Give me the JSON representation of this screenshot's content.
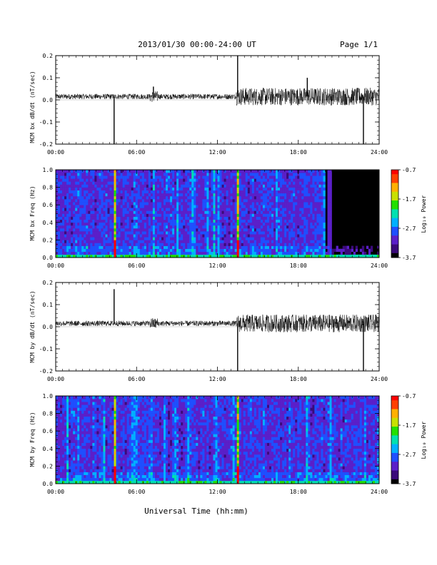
{
  "header": {
    "title": "2013/01/30  00:00-24:00 UT",
    "page": "Page 1/1"
  },
  "footer": {
    "xlabel": "Universal Time (hh:mm)"
  },
  "colorbar": {
    "ticks": [
      "-0.7",
      "-1.7",
      "-2.7",
      "-3.7"
    ],
    "label": "Log₁₀ Power",
    "colors": [
      "#000000",
      "#3b0a7a",
      "#5b1fc9",
      "#1f4fff",
      "#00b0ff",
      "#00e0b0",
      "#22e000",
      "#c8e000",
      "#ffb000",
      "#ff4000",
      "#ff0000"
    ]
  },
  "chart_data": [
    {
      "type": "line",
      "ylabel": "MCM bx dB/dt (nT/sec)",
      "ylim": [
        -0.2,
        0.2
      ],
      "yticks": [
        "0.2",
        "0.1",
        "0.0",
        "-0.1",
        "-0.2"
      ],
      "xlim": [
        "00:00",
        "24:00"
      ],
      "xticks": [
        "00:00",
        "06:00",
        "12:00",
        "18:00",
        "24:00"
      ],
      "series": [
        {
          "x": [
            "00:00",
            "02:00",
            "03:00",
            "04:00",
            "04:20",
            "05:00",
            "06:00",
            "07:00",
            "07:15",
            "08:00",
            "09:00",
            "10:00",
            "11:00",
            "12:00",
            "13:00",
            "13:30",
            "14:00",
            "15:00",
            "16:00",
            "17:00",
            "18:00",
            "18:40",
            "19:00",
            "20:00",
            "21:00",
            "22:00",
            "22:50",
            "23:30",
            "24:00"
          ],
          "y": [
            0.01,
            0.01,
            0.02,
            0.02,
            -0.2,
            0.02,
            0.02,
            0.03,
            0.06,
            0.02,
            0.02,
            0.02,
            0.02,
            0.02,
            0.02,
            0.2,
            0.02,
            0.03,
            0.03,
            0.02,
            0.02,
            0.1,
            0.03,
            0.03,
            0.03,
            0.03,
            -0.2,
            0.03,
            0.02
          ]
        }
      ]
    },
    {
      "type": "heatmap",
      "ylabel": "MCM bx Freq (Hz)",
      "ylim": [
        0.0,
        1.0
      ],
      "yticks": [
        "1.0",
        "0.8",
        "0.6",
        "0.4",
        "0.2",
        "0.0"
      ],
      "xlim": [
        "00:00",
        "24:00"
      ],
      "xticks": [
        "00:00",
        "06:00",
        "12:00",
        "18:00",
        "24:00"
      ],
      "zlim": [
        -3.7,
        -0.7
      ]
    },
    {
      "type": "line",
      "ylabel": "MCM by dB/dt (nT/sec)",
      "ylim": [
        -0.2,
        0.2
      ],
      "yticks": [
        "0.2",
        "0.1",
        "0.0",
        "-0.1",
        "-0.2"
      ],
      "xlim": [
        "00:00",
        "24:00"
      ],
      "xticks": [
        "00:00",
        "06:00",
        "12:00",
        "18:00",
        "24:00"
      ],
      "series": [
        {
          "x": [
            "00:00",
            "02:00",
            "03:00",
            "04:00",
            "04:20",
            "05:00",
            "06:00",
            "07:00",
            "08:00",
            "09:00",
            "10:00",
            "11:00",
            "12:00",
            "13:00",
            "13:30",
            "14:00",
            "15:00",
            "16:00",
            "17:00",
            "18:00",
            "19:00",
            "20:00",
            "21:00",
            "22:00",
            "22:50",
            "23:30",
            "24:00"
          ],
          "y": [
            0.01,
            0.0,
            0.01,
            0.0,
            0.17,
            0.0,
            0.0,
            0.01,
            0.0,
            0.0,
            0.0,
            0.0,
            0.0,
            0.01,
            -0.2,
            0.02,
            0.0,
            0.02,
            0.0,
            0.01,
            0.02,
            0.0,
            0.02,
            0.0,
            -0.2,
            0.02,
            0.0
          ]
        }
      ]
    },
    {
      "type": "heatmap",
      "ylabel": "MCM by Freq (Hz)",
      "ylim": [
        0.0,
        1.0
      ],
      "yticks": [
        "1.0",
        "0.8",
        "0.6",
        "0.4",
        "0.2",
        "0.0"
      ],
      "xlim": [
        "00:00",
        "24:00"
      ],
      "xticks": [
        "00:00",
        "06:00",
        "12:00",
        "18:00",
        "24:00"
      ],
      "zlim": [
        -3.7,
        -0.7
      ]
    }
  ]
}
